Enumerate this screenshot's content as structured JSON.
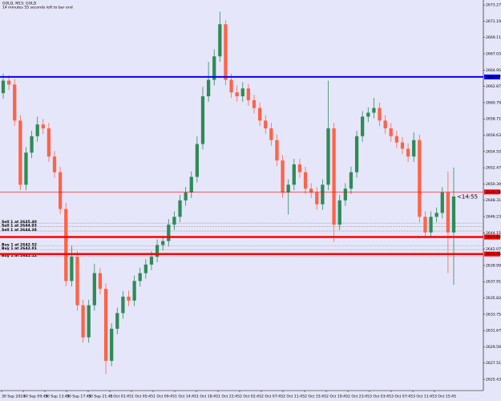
{
  "chart_data": {
    "type": "candlestick",
    "title": "GOLD, M15: GOLD",
    "subtitle": "14 minutes 55 seconds left to bar end",
    "countdown": "<14:55",
    "background": "#e6e6fa",
    "up_color": "#2e8b57",
    "down_color": "#ff6347",
    "ylim": [
      2624.0,
      2673.9
    ],
    "yticks": [
      2625.43,
      2627.51,
      2629.59,
      2631.67,
      2633.75,
      2635.83,
      2637.91,
      2639.99,
      2642.07,
      2644.15,
      2646.23,
      2648.31,
      2650.39,
      2652.47,
      2654.55,
      2656.63,
      2658.71,
      2660.79,
      2662.87,
      2664.95,
      2667.03,
      2669.11,
      2671.19,
      2673.27
    ],
    "x_labels": [
      "30 Sep 2024",
      "30 Sep 09:45",
      "30 Sep 13:45",
      "30 Sep 17:45",
      "30 Sep 21:45",
      "1 Oct 01:45",
      "1 Oct 05:45",
      "1 Oct 09:45",
      "1 Oct 14:45",
      "1 Oct 18:45",
      "1 Oct 22:45",
      "2 Oct 02:45",
      "2 Oct 07:45",
      "2 Oct 11:45",
      "2 Oct 15:45",
      "2 Oct 19:45",
      "2 Oct 23:45",
      "3 Oct 03:45",
      "3 Oct 07:45",
      "3 Oct 11:45",
      "3 Oct 15:45"
    ],
    "open": [
      2662.0,
      2663.6,
      2663.1,
      2658.5,
      2650.3,
      2654.4,
      2656.5,
      2658.0,
      2657.5,
      2653.9,
      2651.9,
      2647.2,
      2638.0,
      2641.1,
      2634.9,
      2630.8,
      2634.9,
      2639.0,
      2637.0,
      2627.8,
      2631.9,
      2633.9,
      2636.0,
      2635.5,
      2638.0,
      2639.0,
      2640.1,
      2641.1,
      2642.6,
      2643.1,
      2645.2,
      2646.2,
      2648.3,
      2649.3,
      2651.3,
      2655.5,
      2661.6,
      2663.7,
      2666.7,
      2670.8,
      2663.7,
      2662.1,
      2661.6,
      2662.6,
      2661.1,
      2660.1,
      2658.5,
      2657.5,
      2656.0,
      2653.4,
      2649.3,
      2650.3,
      2652.9,
      2651.9,
      2649.8,
      2649.3,
      2647.8,
      2650.3,
      2657.5,
      2645.2,
      2648.3,
      2649.8,
      2651.9,
      2656.5,
      2659.0,
      2659.5,
      2660.1,
      2658.5,
      2657.5,
      2656.5,
      2655.7,
      2654.9,
      2653.9,
      2656.0,
      2646.2,
      2644.2,
      2646.2,
      2646.7,
      2649.3,
      2644.2
    ],
    "high": [
      2664.5,
      2664.3,
      2663.8,
      2659.2,
      2655.1,
      2657.2,
      2659.0,
      2658.7,
      2658.2,
      2654.6,
      2652.6,
      2648.0,
      2642.5,
      2641.8,
      2635.6,
      2635.6,
      2640.2,
      2639.7,
      2637.7,
      2632.6,
      2634.6,
      2636.7,
      2636.8,
      2638.7,
      2639.7,
      2640.8,
      2641.8,
      2643.3,
      2643.8,
      2645.9,
      2646.9,
      2649.0,
      2650.0,
      2652.0,
      2656.5,
      2662.8,
      2666.0,
      2667.6,
      2672.4,
      2671.3,
      2664.5,
      2663.0,
      2663.4,
      2663.2,
      2661.8,
      2660.8,
      2659.2,
      2658.2,
      2656.7,
      2654.1,
      2651.0,
      2653.6,
      2653.6,
      2652.6,
      2650.5,
      2650.0,
      2651.0,
      2663.6,
      2658.2,
      2649.0,
      2650.5,
      2652.6,
      2657.2,
      2659.7,
      2660.2,
      2661.4,
      2660.8,
      2659.2,
      2658.2,
      2657.2,
      2656.4,
      2655.6,
      2657.0,
      2656.7,
      2646.9,
      2646.9,
      2647.4,
      2650.0,
      2652.0,
      2652.5
    ],
    "low": [
      2661.3,
      2662.4,
      2657.8,
      2649.6,
      2649.6,
      2653.7,
      2655.8,
      2656.8,
      2653.2,
      2651.2,
      2646.5,
      2637.3,
      2637.3,
      2634.2,
      2630.1,
      2630.1,
      2634.2,
      2636.3,
      2626.1,
      2627.1,
      2631.2,
      2633.2,
      2634.8,
      2634.8,
      2637.3,
      2638.3,
      2639.4,
      2640.4,
      2641.9,
      2642.4,
      2644.5,
      2645.5,
      2647.6,
      2648.6,
      2650.6,
      2654.8,
      2660.9,
      2663.0,
      2666.0,
      2663.0,
      2661.4,
      2660.9,
      2660.9,
      2660.4,
      2659.4,
      2657.8,
      2656.8,
      2655.3,
      2652.7,
      2648.6,
      2646.5,
      2649.6,
      2651.2,
      2649.1,
      2648.6,
      2647.1,
      2647.1,
      2649.6,
      2643.0,
      2644.5,
      2647.6,
      2649.1,
      2651.2,
      2655.8,
      2658.3,
      2658.8,
      2657.8,
      2656.8,
      2655.8,
      2655.0,
      2654.2,
      2653.2,
      2653.2,
      2645.5,
      2643.5,
      2643.5,
      2645.5,
      2646.0,
      2639.0,
      2637.5
    ],
    "close": [
      2663.6,
      2663.1,
      2658.5,
      2650.3,
      2654.4,
      2656.5,
      2658.0,
      2657.5,
      2653.9,
      2651.9,
      2647.2,
      2638.0,
      2641.1,
      2634.9,
      2630.8,
      2634.9,
      2639.0,
      2637.0,
      2627.8,
      2631.9,
      2633.9,
      2636.0,
      2635.5,
      2638.0,
      2639.0,
      2640.1,
      2641.1,
      2642.6,
      2643.1,
      2645.2,
      2646.2,
      2648.3,
      2649.3,
      2651.3,
      2655.5,
      2661.6,
      2663.7,
      2666.7,
      2670.8,
      2663.7,
      2662.1,
      2661.6,
      2662.6,
      2661.1,
      2660.1,
      2658.5,
      2657.5,
      2656.0,
      2653.4,
      2649.3,
      2650.3,
      2652.9,
      2651.9,
      2649.8,
      2649.3,
      2647.8,
      2650.3,
      2657.5,
      2645.2,
      2648.3,
      2649.8,
      2651.9,
      2656.5,
      2659.0,
      2659.5,
      2660.1,
      2658.5,
      2657.5,
      2656.5,
      2655.7,
      2654.9,
      2653.9,
      2656.0,
      2646.2,
      2644.2,
      2646.2,
      2646.7,
      2649.3,
      2644.2,
      2648.8
    ],
    "levels": [
      {
        "price": 2664.07,
        "color": "#0000ff",
        "width": 2
      },
      {
        "price": 2649.38,
        "color": "#ff0000",
        "width": 0.6
      },
      {
        "price": 2643.62,
        "color": "#ff0000",
        "width": 2.5
      },
      {
        "price": 2641.45,
        "color": "#ff0000",
        "width": 2.5
      }
    ],
    "orders": [
      {
        "label": "Sell 1 at 2645.40",
        "price": 2645.4
      },
      {
        "label": "Sell 1 at 2644.93",
        "price": 2644.93
      },
      {
        "label": "Sell 1 at 2644.38",
        "price": 2644.38
      },
      {
        "label": "Buy 1 at 2642.52",
        "price": 2642.52
      },
      {
        "label": "Buy 1 at 2642.01",
        "price": 2642.01
      },
      {
        "label": "Buy 1 at 2641.12",
        "price": 2641.12
      }
    ]
  }
}
